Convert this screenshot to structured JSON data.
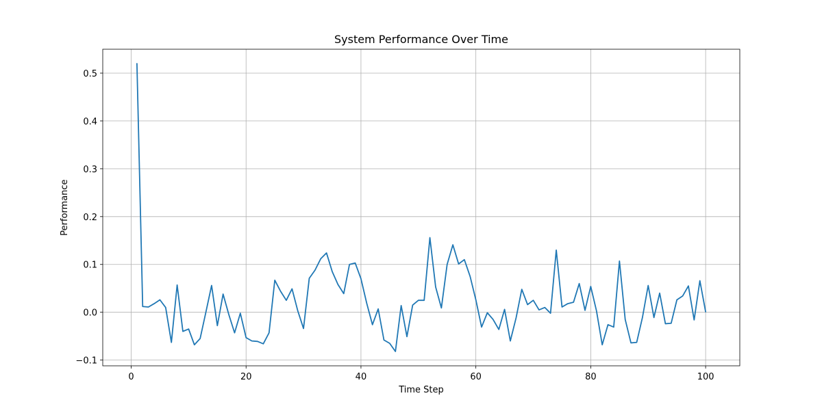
{
  "chart_data": {
    "type": "line",
    "title": "System Performance Over Time",
    "xlabel": "Time Step",
    "ylabel": "Performance",
    "xlim": [
      -4.95,
      105.95
    ],
    "ylim": [
      -0.112,
      0.55
    ],
    "xticks": [
      0,
      20,
      40,
      60,
      80,
      100
    ],
    "yticks": [
      -0.1,
      0.0,
      0.1,
      0.2,
      0.3,
      0.4,
      0.5
    ],
    "grid": true,
    "legend": "none",
    "series": [
      {
        "color": "#1f77b4",
        "x": [
          1,
          2,
          3,
          4,
          5,
          6,
          7,
          8,
          9,
          10,
          11,
          12,
          13,
          14,
          15,
          16,
          17,
          18,
          19,
          20,
          21,
          22,
          23,
          24,
          25,
          26,
          27,
          28,
          29,
          30,
          31,
          32,
          33,
          34,
          35,
          36,
          37,
          38,
          39,
          40,
          41,
          42,
          43,
          44,
          45,
          46,
          47,
          48,
          49,
          50,
          51,
          52,
          53,
          54,
          55,
          56,
          57,
          58,
          59,
          60,
          61,
          62,
          63,
          64,
          65,
          66,
          67,
          68,
          69,
          70,
          71,
          72,
          73,
          74,
          75,
          76,
          77,
          78,
          79,
          80,
          81,
          82,
          83,
          84,
          85,
          86,
          87,
          88,
          89,
          90,
          91,
          92,
          93,
          94,
          95,
          96,
          97,
          98,
          99,
          100
        ],
        "values": [
          0.52,
          0.012,
          0.011,
          0.018,
          0.026,
          0.01,
          -0.063,
          0.057,
          -0.04,
          -0.035,
          -0.068,
          -0.055,
          0.0,
          0.056,
          -0.028,
          0.038,
          -0.005,
          -0.043,
          -0.002,
          -0.053,
          -0.06,
          -0.061,
          -0.066,
          -0.043,
          0.067,
          0.044,
          0.025,
          0.049,
          0.003,
          -0.034,
          0.071,
          0.088,
          0.112,
          0.124,
          0.085,
          0.058,
          0.039,
          0.1,
          0.103,
          0.07,
          0.019,
          -0.026,
          0.007,
          -0.058,
          -0.065,
          -0.082,
          0.014,
          -0.051,
          0.015,
          0.025,
          0.025,
          0.156,
          0.053,
          0.009,
          0.1,
          0.141,
          0.101,
          0.11,
          0.075,
          0.026,
          -0.031,
          -0.001,
          -0.015,
          -0.036,
          0.006,
          -0.06,
          -0.012,
          0.048,
          0.016,
          0.025,
          0.005,
          0.01,
          -0.002,
          0.13,
          0.011,
          0.018,
          0.021,
          0.06,
          0.004,
          0.054,
          0.003,
          -0.068,
          -0.026,
          -0.031,
          0.107,
          -0.015,
          -0.064,
          -0.063,
          -0.011,
          0.056,
          -0.011,
          0.04,
          -0.024,
          -0.023,
          0.026,
          0.034,
          0.055,
          -0.016,
          0.066,
          0.001
        ]
      }
    ]
  }
}
